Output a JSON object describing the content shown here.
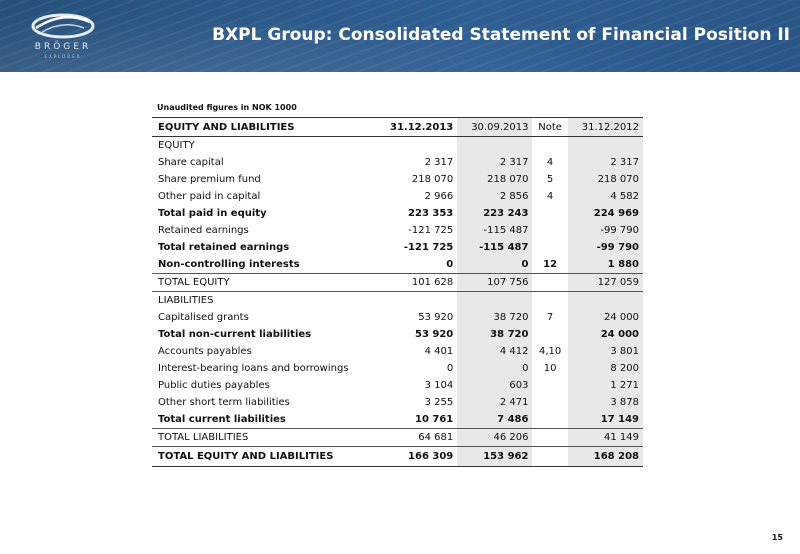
{
  "header": {
    "title": "BXPL Group: Consolidated Statement of Financial Position II",
    "logo_text": "BRÖGER",
    "logo_subtext": "EXPLORER"
  },
  "subtitle": "Unaudited figures in NOK 1000",
  "table": {
    "columns": [
      "EQUITY AND LIABILITIES",
      "31.12.2013",
      "30.09.2013",
      "Note",
      "31.12.2012"
    ],
    "rows": [
      {
        "label": "EQUITY",
        "v1": "",
        "v2": "",
        "note": "",
        "v3": "",
        "style": "section"
      },
      {
        "label": "Share capital",
        "v1": "2 317",
        "v2": "2 317",
        "note": "4",
        "v3": "2 317",
        "style": "normal"
      },
      {
        "label": "Share premium fund",
        "v1": "218 070",
        "v2": "218 070",
        "note": "5",
        "v3": "218 070",
        "style": "normal"
      },
      {
        "label": "Other paid in capital",
        "v1": "2 966",
        "v2": "2 856",
        "note": "4",
        "v3": "4 582",
        "style": "normal"
      },
      {
        "label": "Total paid in equity",
        "v1": "223 353",
        "v2": "223 243",
        "note": "",
        "v3": "224 969",
        "style": "bold"
      },
      {
        "label": "Retained earnings",
        "v1": "-121 725",
        "v2": "-115 487",
        "note": "",
        "v3": "-99 790",
        "style": "normal"
      },
      {
        "label": "Total retained earnings",
        "v1": "-121 725",
        "v2": "-115 487",
        "note": "",
        "v3": "-99 790",
        "style": "bold"
      },
      {
        "label": "Non-controlling interests",
        "v1": "0",
        "v2": "0",
        "note": "12",
        "v3": "1 880",
        "style": "bold"
      },
      {
        "label": "TOTAL EQUITY",
        "v1": "101 628",
        "v2": "107 756",
        "note": "",
        "v3": "127 059",
        "style": "total"
      },
      {
        "label": "LIABILITIES",
        "v1": "",
        "v2": "",
        "note": "",
        "v3": "",
        "style": "section"
      },
      {
        "label": "Capitalised grants",
        "v1": "53 920",
        "v2": "38 720",
        "note": "7",
        "v3": "24 000",
        "style": "normal"
      },
      {
        "label": "Total non-current liabilities",
        "v1": "53 920",
        "v2": "38 720",
        "note": "",
        "v3": "24 000",
        "style": "bold"
      },
      {
        "label": "Accounts payables",
        "v1": "4 401",
        "v2": "4 412",
        "note": "4,10",
        "v3": "3 801",
        "style": "normal"
      },
      {
        "label": "Interest-bearing loans and borrowings",
        "v1": "0",
        "v2": "0",
        "note": "10",
        "v3": "8 200",
        "style": "normal"
      },
      {
        "label": "Public duties payables",
        "v1": "3 104",
        "v2": "603",
        "note": "",
        "v3": "1 271",
        "style": "normal"
      },
      {
        "label": "Other short term liabilities",
        "v1": "3 255",
        "v2": "2 471",
        "note": "",
        "v3": "3 878",
        "style": "normal"
      },
      {
        "label": "Total current liabilities",
        "v1": "10 761",
        "v2": "7 486",
        "note": "",
        "v3": "17 149",
        "style": "bold"
      },
      {
        "label": "TOTAL LIABILITIES",
        "v1": "64 681",
        "v2": "46 206",
        "note": "",
        "v3": "41 149",
        "style": "total"
      },
      {
        "label": "TOTAL EQUITY AND LIABILITIES",
        "v1": "166 309",
        "v2": "153 962",
        "note": "",
        "v3": "168 208",
        "style": "grand"
      }
    ]
  },
  "page_number": "15",
  "colors": {
    "banner": "#2b5888",
    "shaded_column": "#e8e8e8"
  }
}
